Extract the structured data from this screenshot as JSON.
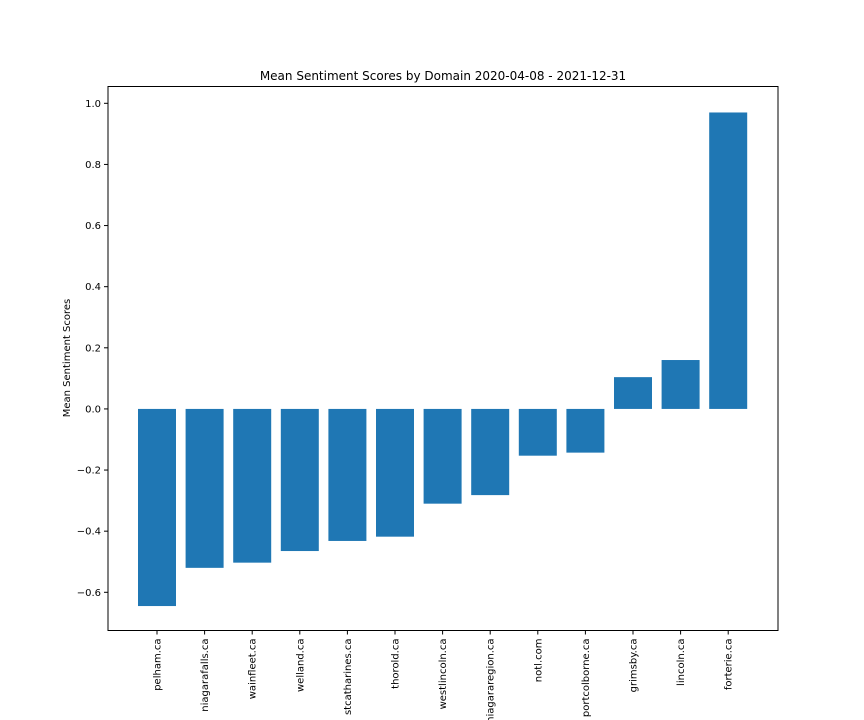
{
  "chart_data": {
    "type": "bar",
    "title": "Mean Sentiment Scores by Domain 2020-04-08 - 2021-12-31",
    "xlabel": "",
    "ylabel": "Mean Sentiment Scores",
    "categories": [
      "pelham.ca",
      "niagarafalls.ca",
      "wainfleet.ca",
      "welland.ca",
      "stcatharines.ca",
      "thorold.ca",
      "westlincoln.ca",
      "niagararegion.ca",
      "notl.com",
      "portcolborne.ca",
      "grimsby.ca",
      "lincoln.ca",
      "forterie.ca"
    ],
    "values": [
      -0.645,
      -0.52,
      -0.503,
      -0.465,
      -0.432,
      -0.418,
      -0.31,
      -0.282,
      -0.153,
      -0.143,
      0.104,
      0.16,
      0.97
    ],
    "ylim": [
      -0.725,
      1.055
    ],
    "yticks": [
      -0.6,
      -0.4,
      -0.2,
      0.0,
      0.2,
      0.4,
      0.6,
      0.8,
      1.0
    ],
    "ytick_labels": [
      "−0.6",
      "−0.4",
      "−0.2",
      "0.0",
      "0.2",
      "0.4",
      "0.6",
      "0.8",
      "1.0"
    ],
    "bar_color": "#1f77b4",
    "grid": false,
    "legend": "none"
  }
}
